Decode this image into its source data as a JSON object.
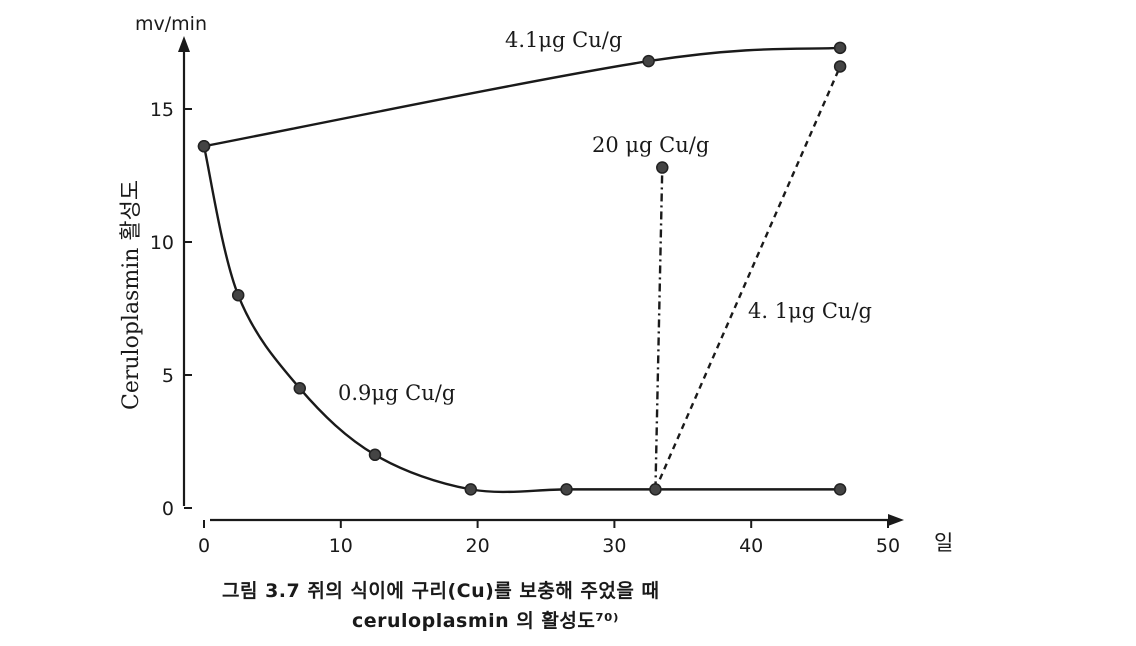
{
  "chart_data": {
    "type": "line",
    "yunit": "mv/min",
    "ylabel": "Ceruloplasmin 활성도",
    "xunit": "일",
    "xlim": [
      0,
      50
    ],
    "ylim": [
      0,
      17.5
    ],
    "xticks": [
      0,
      10,
      20,
      30,
      40,
      50
    ],
    "yticks": [
      0,
      5,
      10,
      15
    ],
    "series": [
      {
        "name": "4.1μg Cu/g",
        "style": "solid",
        "x": [
          0,
          32.5,
          46.5
        ],
        "y": [
          13.6,
          16.8,
          17.3
        ]
      },
      {
        "name": "0.9μg Cu/g",
        "style": "solid",
        "x": [
          0,
          2.5,
          7,
          12.5,
          19.5,
          26.5,
          33,
          46.5
        ],
        "y": [
          13.6,
          8,
          4.5,
          2,
          0.7,
          0.7,
          0.7,
          0.7
        ]
      },
      {
        "name": "20 μg Cu/g",
        "style": "dash-dot",
        "x": [
          33,
          33.5
        ],
        "y": [
          0.7,
          12.8
        ]
      },
      {
        "name": "4. 1μg Cu/g",
        "style": "dashed",
        "x": [
          33,
          46.5
        ],
        "y": [
          0.7,
          16.6
        ]
      }
    ]
  },
  "caption": {
    "line1": "그림 3.7  쥐의 식이에 구리(Cu)를 보충해 주었을 때",
    "line2": "ceruloplasmin 의 활성도⁷⁰⁾"
  }
}
